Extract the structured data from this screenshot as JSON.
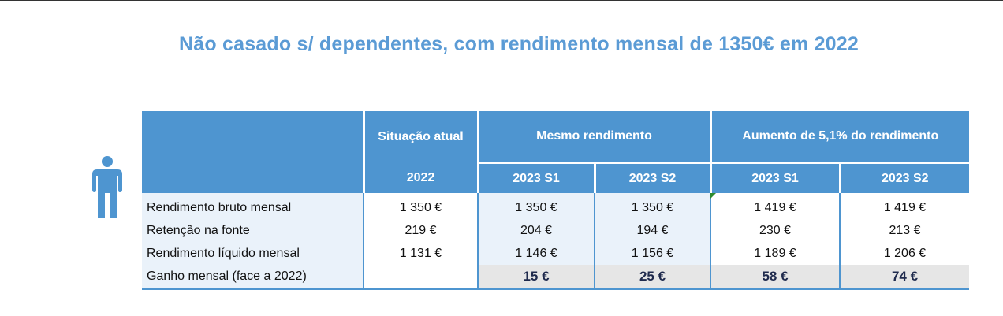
{
  "title": "Não casado s/ dependentes, com rendimento mensal de 1350€ em 2022",
  "icon": "person-icon",
  "colors": {
    "header": "#4e95d0",
    "title": "#5b9bd5",
    "light_cell": "#eaf2fa",
    "gain_row": "#e6e6e6"
  },
  "table": {
    "header_groups": [
      "Situação atual",
      "Mesmo rendimento",
      "Aumento de 5,1% do rendimento"
    ],
    "subheaders": [
      "2022",
      "2023 S1",
      "2023 S2",
      "2023 S1",
      "2023 S2"
    ],
    "rows": [
      {
        "label": "Rendimento bruto mensal",
        "values": [
          "1 350 €",
          "1 350 €",
          "1 350 €",
          "1 419 €",
          "1 419 €"
        ]
      },
      {
        "label": "Retenção na fonte",
        "values": [
          "219 €",
          "204 €",
          "194 €",
          "230 €",
          "213 €"
        ]
      },
      {
        "label": "Rendimento líquido mensal",
        "values": [
          "1 131 €",
          "1 146 €",
          "1 156 €",
          "1 189 €",
          "1 206 €"
        ]
      },
      {
        "label": "Ganho mensal (face a 2022)",
        "values": [
          "",
          "15 €",
          "25 €",
          "58 €",
          "74 €"
        ]
      }
    ]
  }
}
